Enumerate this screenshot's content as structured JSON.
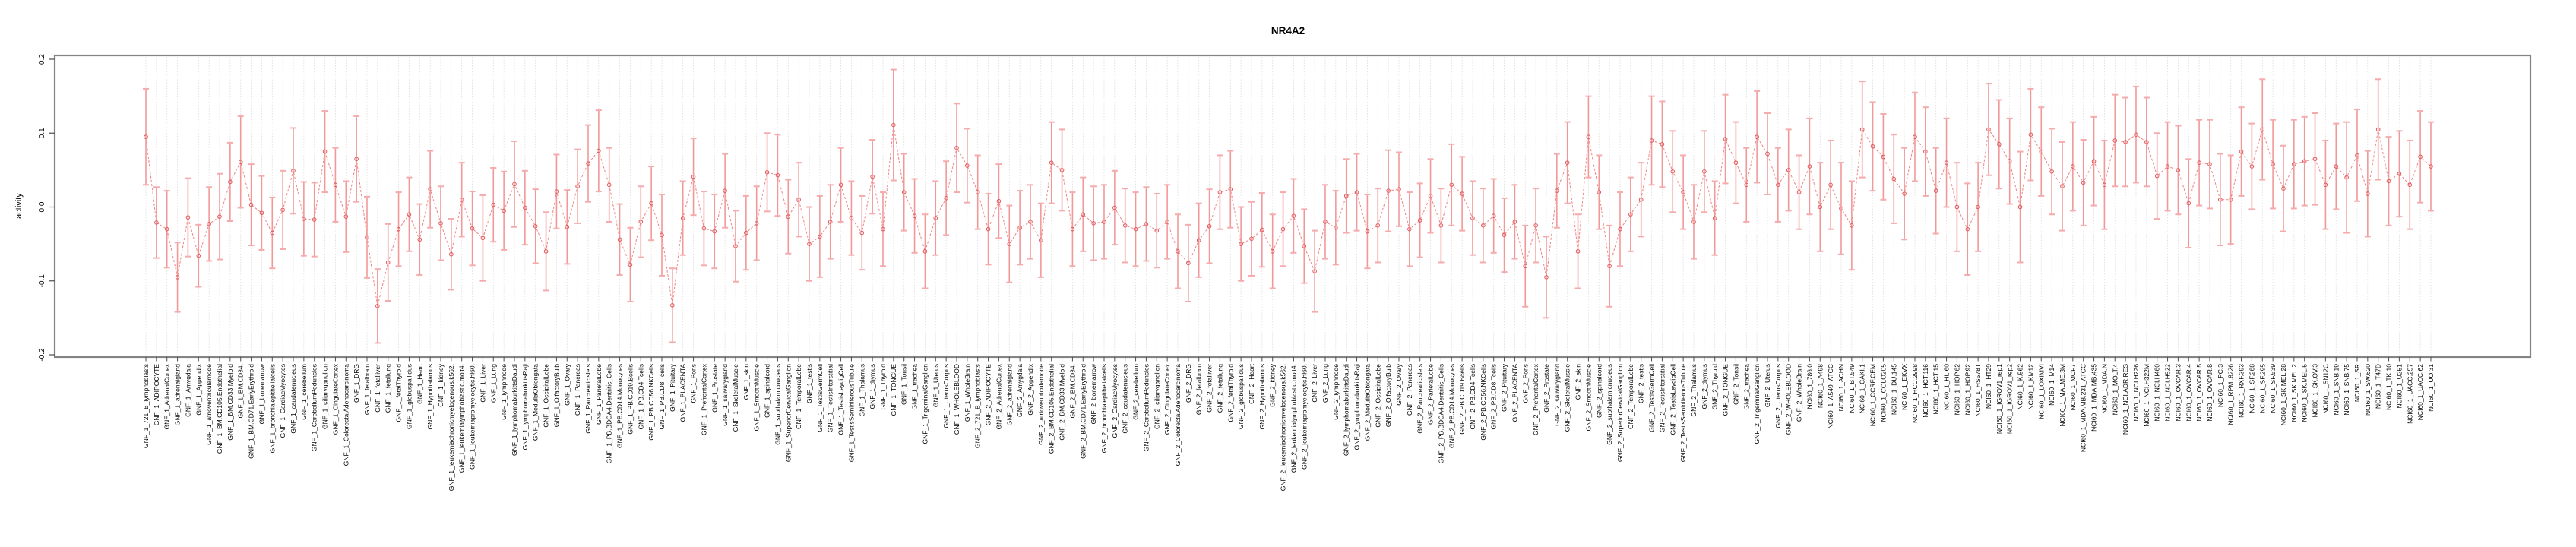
{
  "title": "NR4A2",
  "chart_data": {
    "type": "line",
    "subtype": "point-estimates-with-error-bars",
    "title": "NR4A2",
    "xlabel": "",
    "ylabel": "activity",
    "ylim": [
      -0.2,
      0.2
    ],
    "ytick_values": [
      0.2,
      0.1,
      0.0,
      -0.1,
      -0.2
    ],
    "ytick_labels": [
      "0.2",
      "0.1",
      "0.0",
      "-0.1",
      "-0.2"
    ],
    "grid": "vertical dotted gridline per category; horizontal dotted line at y=0",
    "legend_position": "none",
    "point_marker": "open-circle",
    "line_style": "dashed",
    "colors": {
      "point_stroke": "#e0585b",
      "connector_line": "#ee8585",
      "error_bar": "#f19999",
      "error_cap": "#f5abab",
      "grid_line": "#dbdbdb",
      "zero_line": "#c9c9c9",
      "frame": "#848484",
      "tick": "#4d4d4d",
      "text": "#000000"
    },
    "categories": [
      "GNF_1_721_B_lymphoblasts",
      "GNF_1_ADIPOCYTE",
      "GNF_1_AdrenalCortex",
      "GNF_1_adrenalgland",
      "GNF_1_Amygdala",
      "GNF_1_Appendix",
      "GNF_1_atrioventricularnode",
      "GNF_1_BM.CD105.Endothelial",
      "GNF_1_BM.CD33.Myeloid",
      "GNF_1_BM.CD34.",
      "GNF_1_BM.CD71.EarlyErythroid",
      "GNF_1_bonemarrow",
      "GNF_1_bronchialepithelialcells",
      "GNF_1_CardiacMyocytes",
      "GNF_1_caudatenucleus",
      "GNF_1_cerebellum",
      "GNF_1_CerebellumPeduncles",
      "GNF_1_ciliaryganglion",
      "GNF_1_CingulateCortex",
      "GNF_1_ColorectalAdenocarcinoma",
      "GNF_1_DRG",
      "GNF_1_fetalbrain",
      "GNF_1_fetalliver",
      "GNF_1_fetallung",
      "GNF_1_fetalThyroid",
      "GNF_1_globuspallidus",
      "GNF_1_Heart",
      "GNF_1_Hypothalamus",
      "GNF_1_kidney",
      "GNF_1_leukemiachronicmyelogenous.k562.",
      "GNF_1_leukemialymphoblastic.molt4.",
      "GNF_1_leukemiapromyelocytic.hl60.",
      "GNF_1_Liver",
      "GNF_1_Lung",
      "GNF_1_lymphnode",
      "GNF_1_lymphomaburkittsDaudi",
      "GNF_1_lymphomaburkittsRaji",
      "GNF_1_MedullaOblongata",
      "GNF_1_OccipitalLobe",
      "GNF_1_OlfactoryBulb",
      "GNF_1_Ovary",
      "GNF_1_Pancreas",
      "GNF_1_Pancreaticislets",
      "GNF_1_ParietalLobe",
      "GNF_1_PB.BDCA4.Dentritic_Cells",
      "GNF_1_PB.CD14.Monocytes",
      "GNF_1_PB.CD19.Bcells",
      "GNF_1_PB.CD4.Tcells",
      "GNF_1_PB.CD56.NKCells",
      "GNF_1_PB.CD8.Tcells",
      "GNF_1_Pituitary",
      "GNF_1_PLACENTA",
      "GNF_1_Pons",
      "GNF_1_PrefrontalCortex",
      "GNF_1_Prostate",
      "GNF_1_salivarygland",
      "GNF_1_SkeletalMuscle",
      "GNF_1_skin",
      "GNF_1_SmoothMuscle",
      "GNF_1_spinalcord",
      "GNF_1_subthalamicnucleus",
      "GNF_1_SuperiorCervicalGanglion",
      "GNF_1_TemporalLobe",
      "GNF_1_testis",
      "GNF_1_TestisGermCell",
      "GNF_1_TestisInterstitial",
      "GNF_1_TestisLeydigCell",
      "GNF_1_TestisSeminiferousTubule",
      "GNF_1_Thalamus",
      "GNF_1_thymus",
      "GNF_1_Thyroid",
      "GNF_1_TONGUE",
      "GNF_1_Tonsil",
      "GNF_1_trachea",
      "GNF_1_TrigeminalGanglion",
      "GNF_1_Uterus",
      "GNF_1_UterusCorpus",
      "GNF_1_WHOLEBLOOD",
      "GNF_1_WholeBrain",
      "GNF_2_721_B_lymphoblasts",
      "GNF_2_ADIPOCYTE",
      "GNF_2_AdrenalCortex",
      "GNF_2_adrenalgland",
      "GNF_2_Amygdala",
      "GNF_2_Appendix",
      "GNF_2_atrioventricularnode",
      "GNF_2_BM.CD105.Endothelial",
      "GNF_2_BM.CD33.Myeloid",
      "GNF_2_BM.CD34.",
      "GNF_2_BM.CD71.EarlyErythroid",
      "GNF_2_bonemarrow",
      "GNF_2_bronchialepithelialcells",
      "GNF_2_CardiacMyocytes",
      "GNF_2_caudatenucleus",
      "GNF_2_cerebellum",
      "GNF_2_CerebellumPeduncles",
      "GNF_2_ciliaryganglion",
      "GNF_2_CingulateCortex",
      "GNF_2_ColorectalAdenocarcinoma",
      "GNF_2_DRG",
      "GNF_2_fetalbrain",
      "GNF_2_fetalliver",
      "GNF_2_fetallung",
      "GNF_2_fetalThyroid",
      "GNF_2_globuspallidus",
      "GNF_2_Heart",
      "GNF_2_Hypothalamus",
      "GNF_2_kidney",
      "GNF_2_leukemiachronicmyelogenous.k562.",
      "GNF_2_leukemialymphoblastic.molt4.",
      "GNF_2_leukemiapromyelocytic.hl60.",
      "GNF_2_Liver",
      "GNF_2_Lung",
      "GNF_2_lymphnode",
      "GNF_2_lymphomaburkittsDaudi",
      "GNF_2_lymphomaburkittsRaji",
      "GNF_2_MedullaOblongata",
      "GNF_2_OccipitalLobe",
      "GNF_2_OlfactoryBulb",
      "GNF_2_Ovary",
      "GNF_2_Pancreas",
      "GNF_2_Pancreaticislets",
      "GNF_2_ParietalLobe",
      "GNF_2_PB.BDCA4.Dentritic_Cells",
      "GNF_2_PB.CD14.Monocytes",
      "GNF_2_PB.CD19.Bcells",
      "GNF_2_PB.CD4.Tcells",
      "GNF_2_PB.CD56.NKCells",
      "GNF_2_PB.CD8.Tcells",
      "GNF_2_Pituitary",
      "GNF_2_PLACENTA",
      "GNF_2_Pons",
      "GNF_2_PrefrontalCortex",
      "GNF_2_Prostate",
      "GNF_2_salivarygland",
      "GNF_2_SkeletalMuscle",
      "GNF_2_skin",
      "GNF_2_SmoothMuscle",
      "GNF_2_spinalcord",
      "GNF_2_subthalamicnucleus",
      "GNF_2_SuperiorCervicalGanglion",
      "GNF_2_TemporalLobe",
      "GNF_2_testis",
      "GNF_2_TestisGermCell",
      "GNF_2_TestisInterstitial",
      "GNF_2_TestisLeydigCell",
      "GNF_2_TestisSeminiferousTubule",
      "GNF_2_Thalamus",
      "GNF_2_thymus",
      "GNF_2_Thyroid",
      "GNF_2_TONGUE",
      "GNF_2_Tonsil",
      "GNF_2_trachea",
      "GNF_2_TrigeminalGanglion",
      "GNF_2_Uterus",
      "GNF_2_UterusCorpus",
      "GNF_2_WHOLEBLOOD",
      "GNF_2_WholeBrain",
      "NCI60_1_786.0",
      "NCI60_1_A498",
      "NCI60_1_A549_ATCC",
      "NCI60_1_ACHN",
      "NCI60_1_BT.549",
      "NCI60_1_CAKI.1",
      "NCI60_1_CCRF.CEM",
      "NCI60_1_COLO205",
      "NCI60_1_DU.145",
      "NCI60_1_EKVX",
      "NCI60_1_HCC.2998",
      "NCI60_1_HCT.116",
      "NCI60_1_HCT.15",
      "NCI60_1_HL.60",
      "NCI60_1_HOP.62",
      "NCI60_1_HOP.92",
      "NCI60_1_HS578T",
      "NCI60_1_HT29",
      "NCI60_1_IGROV1_rep1",
      "NCI60_1_IGROV1_rep2",
      "NCI60_1_K.562",
      "NCI60_1_KM12",
      "NCI60_1_LOXIMVI",
      "NCI60_1_M14",
      "NCI60_1_MALME.3M",
      "NCI60_1_MCF7",
      "NCI60_1_MDA.MB.231_ATCC",
      "NCI60_1_MDA.MB.435",
      "NCI60_1_MDA.N",
      "NCI60_1_MOLT.4",
      "NCI60_1_NCI.ADR.RES",
      "NCI60_1_NCI.H226",
      "NCI60_1_NCI.H322M",
      "NCI60_1_NCI.H460",
      "NCI60_1_NCI.H522",
      "NCI60_1_OVCAR.3",
      "NCI60_1_OVCAR.4",
      "NCI60_1_OVCAR.5",
      "NCI60_1_OVCAR.8",
      "NCI60_1_PC.3",
      "NCI60_1_RPMI.8226",
      "NCI60_1_RXF.393",
      "NCI60_1_SF.268",
      "NCI60_1_SF.295",
      "NCI60_1_SF.539",
      "NCI60_1_SK.MEL.28",
      "NCI60_1_SK.MEL.2",
      "NCI60_1_SK.MEL.5",
      "NCI60_1_SK.OV.3",
      "NCI60_1_SN12C",
      "NCI60_1_SNB.19",
      "NCI60_1_SNB.75",
      "NCI60_1_SR",
      "NCI60_1_SW.620",
      "NCI60_1_T47D",
      "NCI60_1_TK.10",
      "NCI60_1_U251",
      "NCI60_1_UACC.257",
      "NCI60_1_UACC.62",
      "NCI60_1_UO.31"
    ],
    "values": [
      0.095,
      -0.021,
      -0.03,
      -0.095,
      -0.014,
      -0.066,
      -0.023,
      -0.013,
      0.034,
      0.061,
      0.003,
      -0.008,
      -0.035,
      -0.004,
      0.049,
      -0.016,
      -0.017,
      0.075,
      0.03,
      -0.013,
      0.065,
      -0.041,
      -0.134,
      -0.075,
      -0.03,
      -0.01,
      -0.044,
      0.024,
      -0.022,
      -0.064,
      0.01,
      -0.029,
      -0.042,
      0.003,
      -0.005,
      0.031,
      -0.001,
      -0.026,
      -0.06,
      0.021,
      -0.027,
      0.028,
      0.059,
      0.076,
      0.03,
      -0.044,
      -0.078,
      -0.02,
      0.005,
      -0.038,
      -0.133,
      -0.015,
      0.041,
      -0.029,
      -0.033,
      0.022,
      -0.053,
      -0.035,
      -0.022,
      0.047,
      0.043,
      -0.013,
      0.01,
      -0.05,
      -0.04,
      -0.02,
      0.03,
      -0.015,
      -0.035,
      0.041,
      -0.03,
      0.111,
      0.02,
      -0.012,
      -0.06,
      -0.015,
      0.012,
      0.08,
      0.056,
      0.02,
      -0.03,
      0.008,
      -0.05,
      -0.028,
      -0.02,
      -0.045,
      0.06,
      0.05,
      -0.03,
      -0.01,
      -0.022,
      -0.02,
      -0.001,
      -0.025,
      -0.03,
      -0.023,
      -0.032,
      -0.02,
      -0.06,
      -0.076,
      -0.045,
      -0.026,
      0.02,
      0.024,
      -0.05,
      -0.043,
      -0.031,
      -0.06,
      -0.03,
      -0.012,
      -0.053,
      -0.087,
      -0.02,
      -0.028,
      0.015,
      0.02,
      -0.033,
      -0.025,
      0.022,
      0.024,
      -0.03,
      -0.018,
      0.015,
      -0.025,
      0.03,
      0.018,
      -0.015,
      -0.025,
      -0.012,
      -0.038,
      -0.02,
      -0.08,
      -0.025,
      -0.095,
      0.022,
      0.06,
      -0.06,
      0.095,
      0.02,
      -0.08,
      -0.03,
      -0.01,
      0.01,
      0.09,
      0.085,
      0.048,
      0.02,
      -0.02,
      0.048,
      -0.015,
      0.092,
      0.06,
      0.03,
      0.095,
      0.072,
      0.03,
      0.05,
      0.02,
      0.055,
      0.0,
      0.03,
      -0.002,
      -0.025,
      0.105,
      0.082,
      0.068,
      0.038,
      0.018,
      0.095,
      0.075,
      0.022,
      0.06,
      0.0,
      -0.03,
      0.0,
      0.105,
      0.085,
      0.062,
      0.0,
      0.098,
      0.075,
      0.048,
      0.028,
      0.055,
      0.033,
      0.062,
      0.03,
      0.09,
      0.088,
      0.098,
      0.088,
      0.042,
      0.055,
      0.05,
      0.005,
      0.06,
      0.058,
      0.01,
      0.01,
      0.075,
      0.055,
      0.105,
      0.058,
      0.025,
      0.058,
      0.062,
      0.065,
      0.03,
      0.055,
      0.04,
      0.07,
      0.018,
      0.105,
      0.035,
      0.045,
      0.03,
      0.068,
      0.055
    ],
    "errors": [
      0.065,
      0.048,
      0.052,
      0.047,
      0.053,
      0.042,
      0.05,
      0.058,
      0.053,
      0.062,
      0.055,
      0.05,
      0.048,
      0.053,
      0.058,
      0.05,
      0.05,
      0.055,
      0.05,
      0.048,
      0.058,
      0.055,
      0.05,
      0.052,
      0.05,
      0.05,
      0.048,
      0.052,
      0.05,
      0.048,
      0.05,
      0.05,
      0.058,
      0.05,
      0.053,
      0.058,
      0.05,
      0.05,
      0.053,
      0.05,
      0.05,
      0.05,
      0.052,
      0.055,
      0.05,
      0.048,
      0.05,
      0.048,
      0.05,
      0.055,
      0.05,
      0.05,
      0.052,
      0.05,
      0.05,
      0.05,
      0.048,
      0.05,
      0.05,
      0.053,
      0.055,
      0.05,
      0.05,
      0.05,
      0.055,
      0.05,
      0.05,
      0.05,
      0.05,
      0.05,
      0.05,
      0.075,
      0.052,
      0.05,
      0.05,
      0.05,
      0.05,
      0.06,
      0.05,
      0.05,
      0.048,
      0.05,
      0.052,
      0.05,
      0.05,
      0.05,
      0.055,
      0.055,
      0.05,
      0.05,
      0.05,
      0.05,
      0.05,
      0.05,
      0.05,
      0.05,
      0.05,
      0.05,
      0.05,
      0.052,
      0.05,
      0.05,
      0.05,
      0.052,
      0.05,
      0.05,
      0.05,
      0.05,
      0.05,
      0.05,
      0.05,
      0.055,
      0.05,
      0.05,
      0.05,
      0.052,
      0.05,
      0.05,
      0.055,
      0.05,
      0.05,
      0.05,
      0.05,
      0.05,
      0.055,
      0.05,
      0.05,
      0.05,
      0.05,
      0.05,
      0.05,
      0.055,
      0.05,
      0.055,
      0.05,
      0.055,
      0.05,
      0.055,
      0.05,
      0.055,
      0.05,
      0.05,
      0.05,
      0.06,
      0.058,
      0.055,
      0.05,
      0.05,
      0.055,
      0.05,
      0.06,
      0.055,
      0.05,
      0.062,
      0.055,
      0.05,
      0.055,
      0.05,
      0.065,
      0.06,
      0.06,
      0.062,
      0.06,
      0.065,
      0.06,
      0.058,
      0.06,
      0.062,
      0.06,
      0.06,
      0.058,
      0.06,
      0.06,
      0.062,
      0.06,
      0.062,
      0.06,
      0.058,
      0.075,
      0.062,
      0.06,
      0.058,
      0.06,
      0.06,
      0.058,
      0.06,
      0.06,
      0.062,
      0.06,
      0.065,
      0.06,
      0.058,
      0.06,
      0.06,
      0.06,
      0.058,
      0.06,
      0.062,
      0.06,
      0.06,
      0.058,
      0.068,
      0.06,
      0.058,
      0.06,
      0.06,
      0.062,
      0.06,
      0.058,
      0.075,
      0.062,
      0.058,
      0.068,
      0.06,
      0.058,
      0.06,
      0.062,
      0.06
    ]
  }
}
